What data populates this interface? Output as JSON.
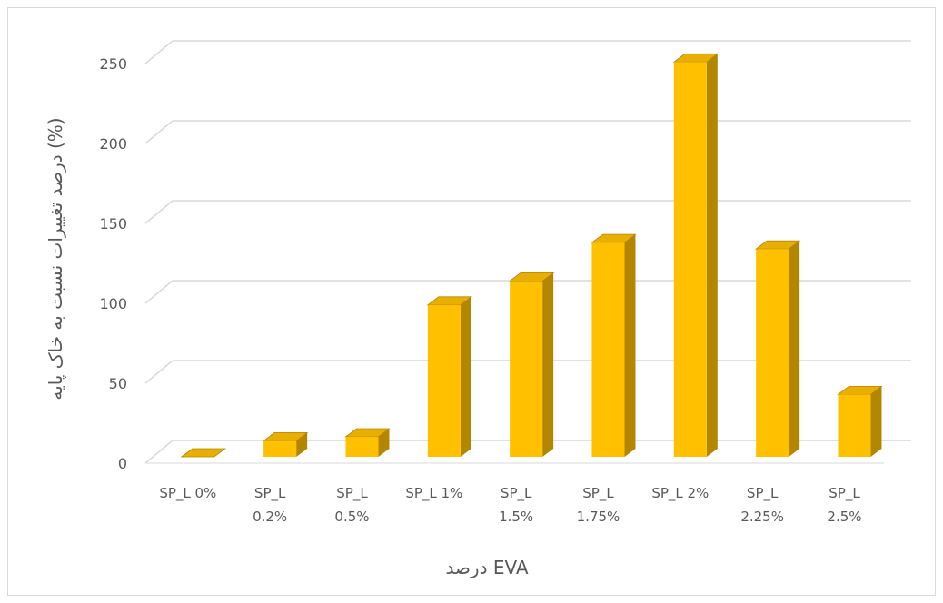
{
  "chart_data": {
    "type": "bar3d",
    "categories": [
      "SP_L 0%",
      "SP_L 0.2%",
      "SP_L 0.5%",
      "SP_L 1%",
      "SP_L 1.5%",
      "SP_L 1.75%",
      "SP_L 2%",
      "SP_L 2.25%",
      "SP_L 2.5%"
    ],
    "values": [
      0,
      10,
      12.5,
      95,
      110,
      134,
      247,
      130,
      39
    ],
    "color": "#ffc000",
    "ylim": [
      0,
      250
    ],
    "yticks": [
      0,
      50,
      100,
      150,
      200,
      250
    ],
    "grid": true,
    "xlabel": "درصد EVA",
    "ylabel": "درصد تغییرات نسبت به خاک پایه (%)"
  }
}
